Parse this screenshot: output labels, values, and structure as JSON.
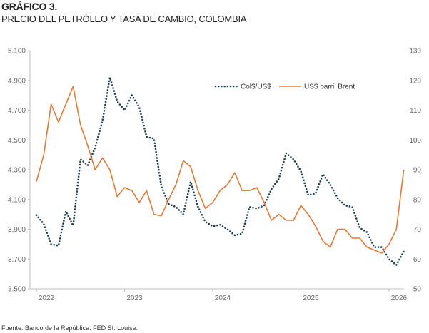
{
  "title": "GRÁFICO 3.",
  "subtitle": "PRECIO DEL PETRÓLEO Y TASA DE CAMBIO, COLOMBIA",
  "source": "Fuente: Banco de la República. FED St. Louise.",
  "colors": {
    "cop": "#1f3f4f",
    "brent": "#e07a3a",
    "axis": "#bfbfbf"
  },
  "chart_data": {
    "type": "line",
    "x_ticks": [
      "2022",
      "2023",
      "2024",
      "2025",
      "2026"
    ],
    "y_left": {
      "ticks": [
        "3.500",
        "3.700",
        "3.900",
        "4.100",
        "4.300",
        "4.500",
        "4.700",
        "4.900",
        "5.100"
      ],
      "range": [
        3500,
        5100
      ]
    },
    "y_right": {
      "ticks": [
        "50",
        "60",
        "70",
        "80",
        "90",
        "100",
        "110",
        "120",
        "130"
      ],
      "range": [
        50,
        130
      ]
    },
    "legend": {
      "position": "top-right"
    },
    "series": [
      {
        "name": "Col$/US$",
        "axis": "left",
        "style": "dotted",
        "points": [
          [
            "2022-01",
            3995
          ],
          [
            "2022-02",
            3935
          ],
          [
            "2022-03",
            3800
          ],
          [
            "2022-04",
            3790
          ],
          [
            "2022-05",
            4020
          ],
          [
            "2022-06",
            3925
          ],
          [
            "2022-07",
            4370
          ],
          [
            "2022-08",
            4330
          ],
          [
            "2022-09",
            4450
          ],
          [
            "2022-10",
            4630
          ],
          [
            "2022-11",
            4920
          ],
          [
            "2022-12",
            4760
          ],
          [
            "2023-01",
            4700
          ],
          [
            "2023-02",
            4800
          ],
          [
            "2023-03",
            4720
          ],
          [
            "2023-04",
            4520
          ],
          [
            "2023-05",
            4510
          ],
          [
            "2023-06",
            4190
          ],
          [
            "2023-07",
            4070
          ],
          [
            "2023-08",
            4050
          ],
          [
            "2023-09",
            4000
          ],
          [
            "2023-10",
            4220
          ],
          [
            "2023-11",
            4050
          ],
          [
            "2023-12",
            3950
          ],
          [
            "2024-01",
            3920
          ],
          [
            "2024-02",
            3930
          ],
          [
            "2024-03",
            3900
          ],
          [
            "2024-04",
            3860
          ],
          [
            "2024-05",
            3870
          ],
          [
            "2024-06",
            4050
          ],
          [
            "2024-07",
            4040
          ],
          [
            "2024-08",
            4060
          ],
          [
            "2024-09",
            4170
          ],
          [
            "2024-10",
            4240
          ],
          [
            "2024-11",
            4410
          ],
          [
            "2024-12",
            4370
          ],
          [
            "2025-01",
            4290
          ],
          [
            "2025-02",
            4130
          ],
          [
            "2025-03",
            4140
          ],
          [
            "2025-04",
            4270
          ],
          [
            "2025-05",
            4200
          ],
          [
            "2025-06",
            4110
          ],
          [
            "2025-07",
            4060
          ],
          [
            "2025-08",
            4050
          ],
          [
            "2025-09",
            3910
          ],
          [
            "2025-10",
            3880
          ],
          [
            "2025-11",
            3780
          ],
          [
            "2025-12",
            3780
          ],
          [
            "2026-01",
            3700
          ],
          [
            "2026-02",
            3660
          ],
          [
            "2026-03",
            3750
          ]
        ]
      },
      {
        "name": "US$ barril Brent",
        "axis": "right",
        "style": "solid",
        "points": [
          [
            "2022-01",
            86
          ],
          [
            "2022-02",
            95
          ],
          [
            "2022-03",
            112
          ],
          [
            "2022-04",
            106
          ],
          [
            "2022-05",
            112
          ],
          [
            "2022-06",
            118
          ],
          [
            "2022-07",
            105
          ],
          [
            "2022-08",
            98
          ],
          [
            "2022-09",
            90
          ],
          [
            "2022-10",
            94
          ],
          [
            "2022-11",
            90
          ],
          [
            "2022-12",
            81
          ],
          [
            "2023-01",
            84
          ],
          [
            "2023-02",
            83
          ],
          [
            "2023-03",
            79
          ],
          [
            "2023-04",
            83
          ],
          [
            "2023-05",
            75
          ],
          [
            "2023-06",
            74.5
          ],
          [
            "2023-07",
            80
          ],
          [
            "2023-08",
            85
          ],
          [
            "2023-09",
            93
          ],
          [
            "2023-10",
            91
          ],
          [
            "2023-11",
            83
          ],
          [
            "2023-12",
            77
          ],
          [
            "2024-01",
            79
          ],
          [
            "2024-02",
            83
          ],
          [
            "2024-03",
            85
          ],
          [
            "2024-04",
            89
          ],
          [
            "2024-05",
            83
          ],
          [
            "2024-06",
            83
          ],
          [
            "2024-07",
            84
          ],
          [
            "2024-08",
            79
          ],
          [
            "2024-09",
            73
          ],
          [
            "2024-10",
            75
          ],
          [
            "2024-11",
            73
          ],
          [
            "2024-12",
            73
          ],
          [
            "2025-01",
            78
          ],
          [
            "2025-02",
            75
          ],
          [
            "2025-03",
            71
          ],
          [
            "2025-04",
            66
          ],
          [
            "2025-05",
            64
          ],
          [
            "2025-06",
            70
          ],
          [
            "2025-07",
            70
          ],
          [
            "2025-08",
            67
          ],
          [
            "2025-09",
            67
          ],
          [
            "2025-10",
            64
          ],
          [
            "2025-11",
            63
          ],
          [
            "2025-12",
            62
          ],
          [
            "2026-01",
            65
          ],
          [
            "2026-02",
            70
          ],
          [
            "2026-03",
            90
          ]
        ]
      }
    ]
  }
}
